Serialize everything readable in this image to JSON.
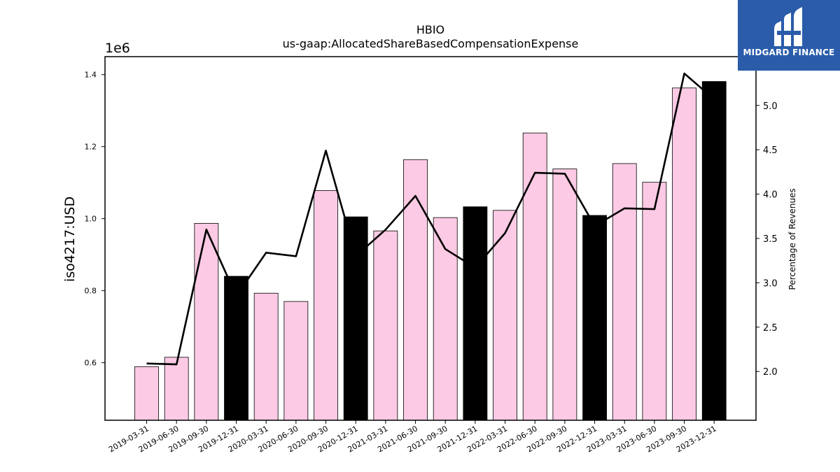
{
  "chart_data": {
    "type": "bar",
    "title": "HBIO",
    "subtitle": "us-gaap:AllocatedShareBasedCompensationExpense",
    "ylabel": "iso4217:USD",
    "y_offset_label": "1e6",
    "y2label": "Percentage of Revenues",
    "categories": [
      "2019-03-31",
      "2019-06-30",
      "2019-09-30",
      "2019-12-31",
      "2020-03-31",
      "2020-06-30",
      "2020-09-30",
      "2020-12-31",
      "2021-03-31",
      "2021-06-30",
      "2021-09-30",
      "2021-12-31",
      "2022-03-31",
      "2022-06-30",
      "2022-09-30",
      "2022-12-31",
      "2023-03-31",
      "2023-06-30",
      "2023-09-30",
      "2023-12-31"
    ],
    "values": [
      0.589,
      0.615,
      0.987,
      0.84,
      0.793,
      0.77,
      1.078,
      1.005,
      0.966,
      1.164,
      1.003,
      1.033,
      1.023,
      1.238,
      1.138,
      1.009,
      1.153,
      1.101,
      1.363,
      1.381
    ],
    "bar_colors": [
      "#fccae4",
      "#fccae4",
      "#fccae4",
      "#000000",
      "#fccae4",
      "#fccae4",
      "#fccae4",
      "#000000",
      "#fccae4",
      "#fccae4",
      "#fccae4",
      "#000000",
      "#fccae4",
      "#fccae4",
      "#fccae4",
      "#000000",
      "#fccae4",
      "#fccae4",
      "#fccae4",
      "#000000"
    ],
    "ylim": [
      0.44,
      1.45
    ],
    "yticks": [
      "0.6",
      "0.8",
      "1.0",
      "1.2",
      "1.4"
    ],
    "series": [
      {
        "axis": "right",
        "values": [
          2.09,
          2.08,
          3.6,
          2.85,
          3.34,
          3.3,
          4.49,
          3.3,
          3.6,
          3.98,
          3.38,
          3.17,
          3.56,
          4.24,
          4.23,
          3.64,
          3.84,
          3.83,
          5.36,
          5.07
        ]
      }
    ],
    "y2lim": [
      1.45,
      5.55
    ],
    "y2ticks": [
      "2.0",
      "2.5",
      "3.0",
      "3.5",
      "4.0",
      "4.5",
      "5.0"
    ],
    "grid": false,
    "colors": {
      "accent_bar": "#fccae4",
      "year_end_bar": "#000000",
      "line": "#000000"
    }
  },
  "logo": {
    "text": "MIDGARD FINANCE",
    "background": "#2a5caa"
  }
}
